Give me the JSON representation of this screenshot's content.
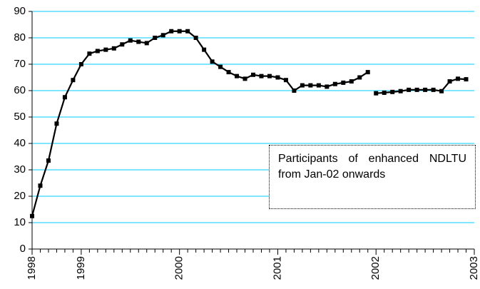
{
  "chart_data": {
    "type": "line",
    "categories": [
      "1998",
      null,
      null,
      null,
      null,
      null,
      "1999",
      null,
      null,
      null,
      null,
      null,
      null,
      null,
      null,
      null,
      null,
      null,
      "2000",
      null,
      null,
      null,
      null,
      null,
      null,
      null,
      null,
      null,
      null,
      null,
      "2001",
      null,
      null,
      null,
      null,
      null,
      null,
      null,
      null,
      null,
      null,
      null,
      "2002",
      null,
      null,
      null,
      null,
      null,
      null,
      null,
      null,
      null,
      null,
      null,
      "2003"
    ],
    "series": [
      {
        "color": "#000000",
        "values": [
          12.5,
          24,
          33.5,
          47.5,
          57.5,
          64,
          70,
          74,
          75,
          75.5,
          76,
          77.5,
          79,
          78.5,
          78,
          80,
          81,
          82.5,
          82.5,
          82.5,
          80,
          75.5,
          71,
          69,
          67,
          65.5,
          64.5,
          66,
          65.5,
          65.5,
          65,
          64,
          60,
          62,
          62,
          62,
          61.5,
          62.5,
          63,
          63.5,
          65,
          67,
          null,
          null,
          null,
          null,
          null,
          null,
          null,
          null,
          null,
          null,
          null,
          null,
          null
        ]
      },
      {
        "color": "#000000",
        "values": [
          null,
          null,
          null,
          null,
          null,
          null,
          null,
          null,
          null,
          null,
          null,
          null,
          null,
          null,
          null,
          null,
          null,
          null,
          null,
          null,
          null,
          null,
          null,
          null,
          null,
          null,
          null,
          null,
          null,
          null,
          null,
          null,
          null,
          null,
          null,
          null,
          null,
          null,
          null,
          null,
          null,
          null,
          59,
          59.2,
          59.5,
          59.8,
          60.3,
          60.3,
          60.3,
          60.3,
          59.8,
          63.5,
          64.5,
          64.3,
          null
        ]
      }
    ],
    "annotation": "Participants of enhanced NDLTU from Jan-02 onwards",
    "ylim": [
      0,
      90
    ],
    "yticks": [
      0,
      10,
      20,
      30,
      40,
      50,
      60,
      70,
      80,
      90
    ],
    "grid": true,
    "grid_color": "#00ccff"
  }
}
